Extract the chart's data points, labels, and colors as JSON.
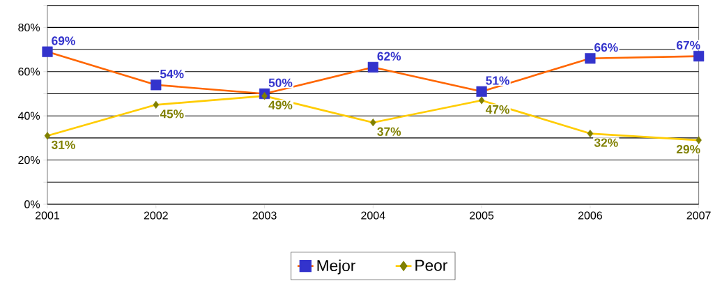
{
  "chart_data": {
    "type": "line",
    "x": [
      2001,
      2002,
      2003,
      2004,
      2005,
      2006,
      2007
    ],
    "xlim": [
      2001,
      2007
    ],
    "xticks": [
      2001,
      2002,
      2003,
      2004,
      2005,
      2006,
      2007
    ],
    "ylim": [
      0,
      90
    ],
    "yticks": [
      {
        "value": 0,
        "label": "0%"
      },
      {
        "value": 10,
        "label": null
      },
      {
        "value": 20,
        "label": "20%"
      },
      {
        "value": 30,
        "label": null
      },
      {
        "value": 40,
        "label": "40%"
      },
      {
        "value": 50,
        "label": null
      },
      {
        "value": 60,
        "label": "60%"
      },
      {
        "value": 70,
        "label": null
      },
      {
        "value": 80,
        "label": "80%"
      },
      {
        "value": 90,
        "label": null
      }
    ],
    "grid": "y",
    "legend": "bottom",
    "series": [
      {
        "name": "Mejor",
        "color": "#ff6600",
        "colors": [
          "#3333cc",
          "#3333cc",
          "#3333cc",
          "#3333cc",
          "#3333cc",
          "#3333cc",
          "#3333cc"
        ],
        "marker": "square",
        "values": [
          69,
          54,
          50,
          62,
          51,
          66,
          67
        ],
        "value_labels": [
          "69%",
          "54%",
          "50%",
          "62%",
          "51%",
          "66%",
          "67%"
        ]
      },
      {
        "name": "Peor",
        "color": "#ffcc00",
        "colors": [
          "#808000",
          "#808000",
          "#808000",
          "#808000",
          "#808000",
          "#808000",
          "#808000"
        ],
        "marker": "diamond",
        "values": [
          31,
          45,
          49,
          37,
          47,
          32,
          29
        ],
        "value_labels": [
          "31%",
          "45%",
          "49%",
          "37%",
          "47%",
          "32%",
          "29%"
        ]
      }
    ]
  }
}
